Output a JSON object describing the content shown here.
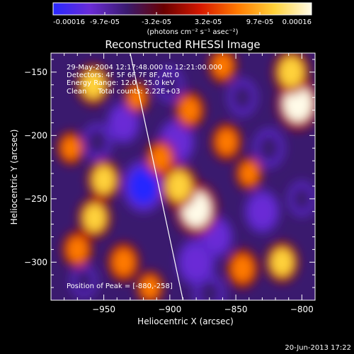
{
  "chart_data": {
    "type": "heatmap",
    "title": "Reconstructed RHESSI Image",
    "xlabel": "Heliocentric X (arcsec)",
    "ylabel": "Heliocentric Y (arcsec)",
    "xlim": [
      -990,
      -790
    ],
    "ylim": [
      -330,
      -135
    ],
    "x_ticks": [
      -950,
      -900,
      -850,
      -800
    ],
    "y_ticks": [
      -150,
      -200,
      -250,
      -300
    ],
    "colorbar": {
      "min": -0.00016,
      "max": 0.00016,
      "tick_labels": [
        "-0.00016",
        "-9.7e-05",
        "-3.2e-05",
        "3.2e-05",
        "9.7e-05",
        "0.00016"
      ],
      "unit_label": "(photons cm⁻² s⁻¹ asec⁻²)",
      "colors": [
        "#2828ff",
        "#6a2cd6",
        "#3a1a6e",
        "#6a0000",
        "#d61800",
        "#ff7a00",
        "#ffd23a",
        "#fffbe8"
      ]
    },
    "info_lines": [
      "29-May-2004 12:17:48.000 to 12:21:00.000",
      "Detectors: 4F 5F 6F 7F 8F, Att 0",
      "Energy Range: 12.0 - 25.0 keV",
      "Clean     Total counts: 2.22E+03"
    ],
    "peak_label": "Position of Peak = [-880,-258]",
    "peak_position": [
      -880,
      -258
    ],
    "limb_line": {
      "x": [
        -930,
        -890
      ],
      "y": [
        -135,
        -330
      ]
    },
    "hot_spots": [
      {
        "x": -880,
        "y": -258,
        "value": 0.00016
      },
      {
        "x": -893,
        "y": -240,
        "value": 0.00012
      },
      {
        "x": -803,
        "y": -175,
        "value": 0.00016
      },
      {
        "x": -808,
        "y": -150,
        "value": 0.00012
      },
      {
        "x": -950,
        "y": -235,
        "value": 0.0001
      },
      {
        "x": -957,
        "y": -265,
        "value": 0.0001
      },
      {
        "x": -958,
        "y": -160,
        "value": 0.0001
      },
      {
        "x": -907,
        "y": -218,
        "value": 8e-05
      },
      {
        "x": -885,
        "y": -180,
        "value": 8e-05
      },
      {
        "x": -857,
        "y": -205,
        "value": 8e-05
      },
      {
        "x": -845,
        "y": -305,
        "value": 9e-05
      },
      {
        "x": -815,
        "y": -300,
        "value": 0.0001
      },
      {
        "x": -935,
        "y": -300,
        "value": 9e-05
      },
      {
        "x": -970,
        "y": -290,
        "value": 8e-05
      },
      {
        "x": -860,
        "y": -145,
        "value": 7e-05
      },
      {
        "x": -840,
        "y": -230,
        "value": 6e-05
      },
      {
        "x": -925,
        "y": -170,
        "value": 5e-05
      },
      {
        "x": -915,
        "y": -320,
        "value": 6e-05
      },
      {
        "x": -975,
        "y": -210,
        "value": 6e-05
      }
    ],
    "cold_spots": [
      {
        "x": -920,
        "y": -240,
        "value": -0.00016
      },
      {
        "x": -895,
        "y": -205,
        "value": -0.00012
      },
      {
        "x": -935,
        "y": -190,
        "value": -0.0001
      },
      {
        "x": -880,
        "y": -300,
        "value": -0.00013
      },
      {
        "x": -865,
        "y": -280,
        "value": -0.0001
      },
      {
        "x": -830,
        "y": -260,
        "value": -0.00011
      },
      {
        "x": -825,
        "y": -210,
        "value": -9e-05
      },
      {
        "x": -845,
        "y": -170,
        "value": -8e-05
      },
      {
        "x": -955,
        "y": -205,
        "value": -8e-05
      },
      {
        "x": -900,
        "y": -160,
        "value": -7e-05
      },
      {
        "x": -870,
        "y": -325,
        "value": -9e-05
      },
      {
        "x": -800,
        "y": -250,
        "value": -7e-05
      },
      {
        "x": -965,
        "y": -315,
        "value": -6e-05
      }
    ]
  },
  "footer": {
    "date": "20-Jun-2013 17:22"
  }
}
